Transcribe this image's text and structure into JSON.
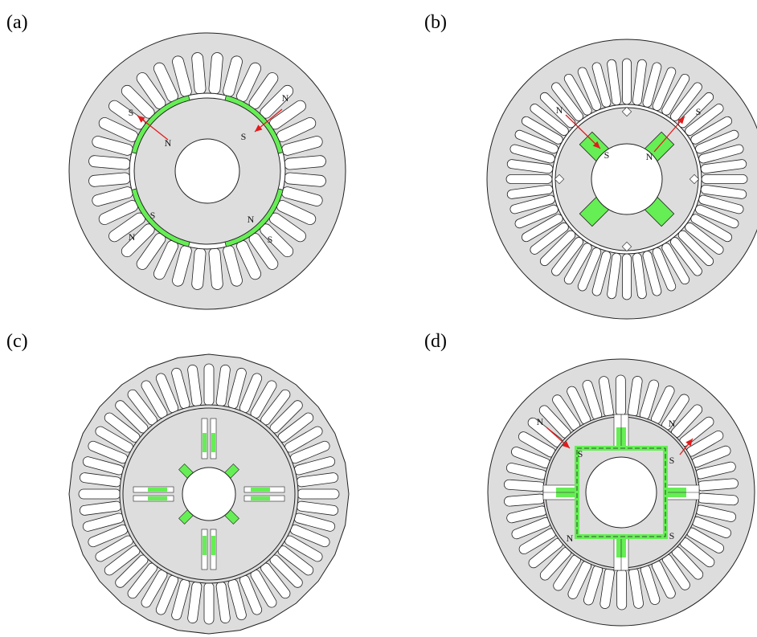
{
  "colors": {
    "steel": "#dddddd",
    "outline": "#222222",
    "magnet": "#66ee55",
    "slot": "#ffffff",
    "arrow": "#e31a1c"
  },
  "panels": [
    {
      "label": "(a)",
      "type": "surface-mounted",
      "stator_slots": 36,
      "pole_labels": [
        "N",
        "S",
        "N",
        "S",
        "N",
        "S",
        "N",
        "S"
      ]
    },
    {
      "label": "(b)",
      "type": "interior-flat",
      "stator_slots": 48,
      "pole_labels": [
        "N",
        "S",
        "N",
        "S"
      ]
    },
    {
      "label": "(c)",
      "type": "interior-v-shaped",
      "stator_slots": 48,
      "pole_labels": []
    },
    {
      "label": "(d)",
      "type": "interior-square-with-bridges",
      "stator_slots": 42,
      "pole_labels": [
        "N",
        "S",
        "N",
        "S",
        "N",
        "S"
      ]
    }
  ]
}
